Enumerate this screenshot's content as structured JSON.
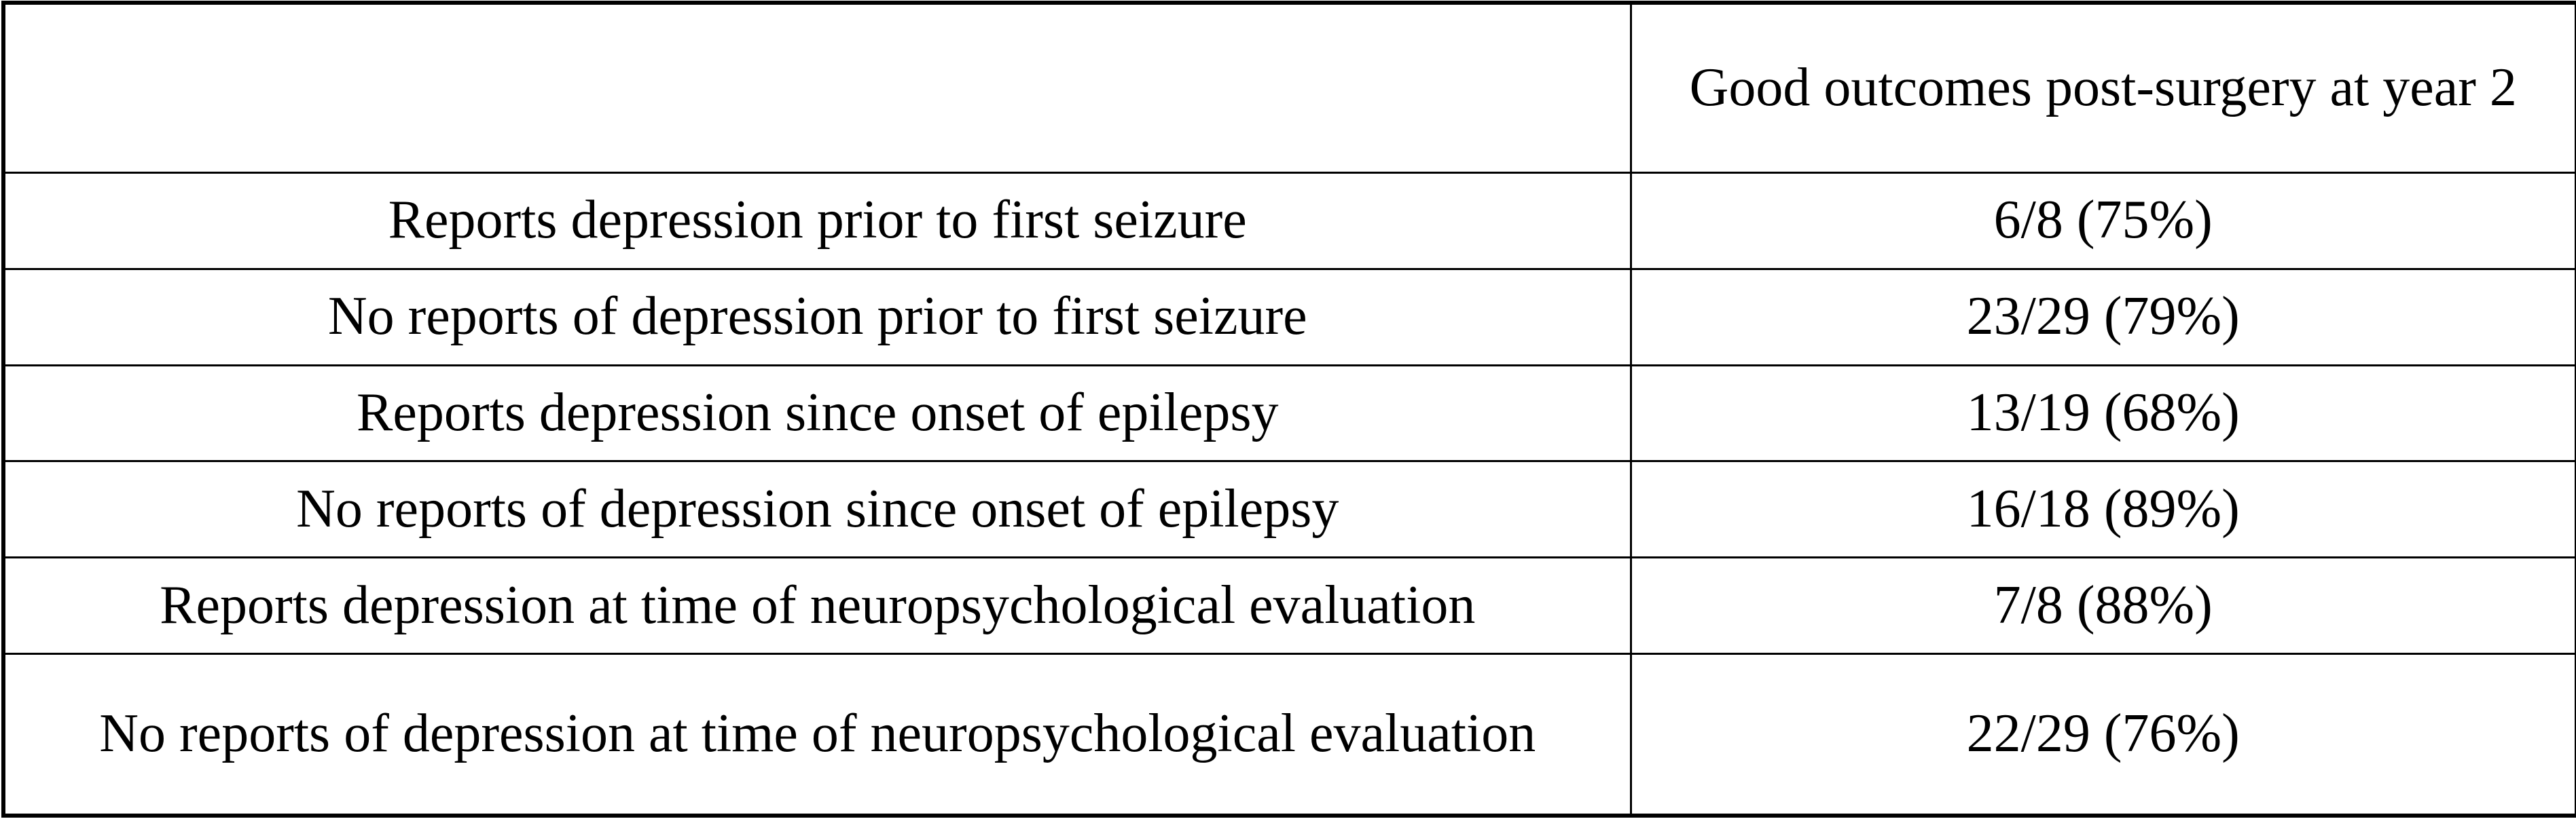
{
  "table": {
    "header": [
      "",
      "Good outcomes post-surgery at year 2"
    ],
    "rows": [
      {
        "label": "Reports depression prior to first seizure",
        "value": "6/8 (75%)"
      },
      {
        "label": "No reports of depression prior to first seizure",
        "value": "23/29 (79%)"
      },
      {
        "label": "Reports depression since onset of epilepsy",
        "value": "13/19 (68%)"
      },
      {
        "label": "No reports of depression since onset of epilepsy",
        "value": "16/18 (89%)"
      },
      {
        "label": "Reports depression at time of neuropsychological evaluation",
        "value": "7/8 (88%)"
      },
      {
        "label": "No reports of depression at time of neuropsychological evaluation",
        "value": "22/29 (76%)"
      }
    ]
  }
}
